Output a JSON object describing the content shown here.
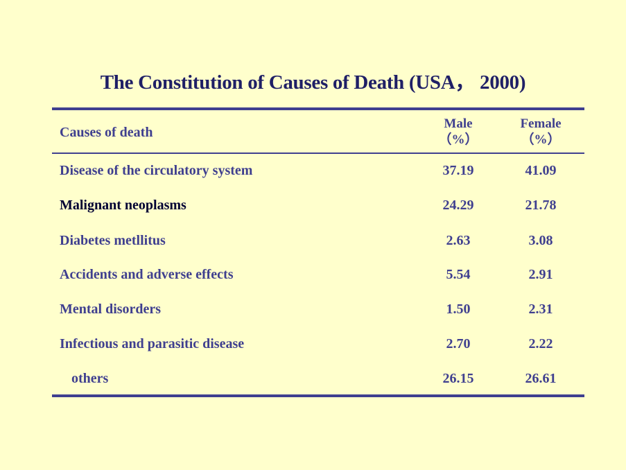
{
  "title": "The Constitution of Causes of Death (USA， 2000)",
  "header": {
    "cause": "Causes of death",
    "male": "Male",
    "male_unit": "（%）",
    "female": "Female",
    "female_unit": "（%）"
  },
  "rows": [
    {
      "cause": "Disease of the circulatory  system",
      "male": "37.19",
      "female": "41.09"
    },
    {
      "cause": "Malignant  neoplasms",
      "male": "24.29",
      "female": "21.78"
    },
    {
      "cause": "Diabetes metllitus",
      "male": "2.63",
      "female": "3.08"
    },
    {
      "cause": "Accidents and adverse effects",
      "male": "5.54",
      "female": "2.91"
    },
    {
      "cause": "Mental disorders",
      "male": "1.50",
      "female": "2.31"
    },
    {
      "cause": "Infectious  and parasitic  disease",
      "male": "2.70",
      "female": "2.22"
    },
    {
      "cause": "others",
      "male": "26.15",
      "female": "26.61"
    }
  ],
  "colors": {
    "background": "#FFFFCC",
    "text": "#3F3F8F",
    "title": "#1F1F66",
    "highlight_row_text": "#000033"
  }
}
